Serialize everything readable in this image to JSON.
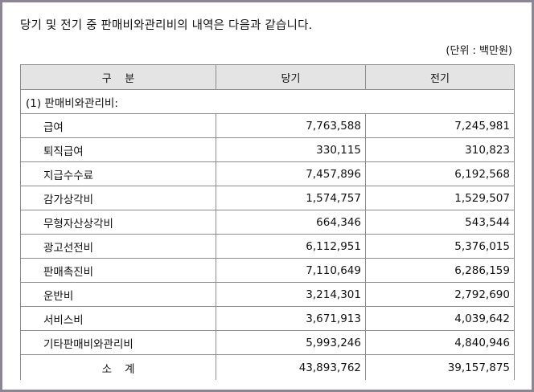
{
  "intro": "당기 및 전기 중 판매비와관리비의 내역은 다음과 같습니다.",
  "unit": "(단위 : 백만원)",
  "headers": {
    "category": "구    분",
    "current": "당기",
    "prior": "전기"
  },
  "section_title": "(1) 판매비와관리비:",
  "rows": [
    {
      "item": "급여",
      "current": "7,763,588",
      "prior": "7,245,981"
    },
    {
      "item": "퇴직급여",
      "current": "330,115",
      "prior": "310,823"
    },
    {
      "item": "지급수수료",
      "current": "7,457,896",
      "prior": "6,192,568"
    },
    {
      "item": "감가상각비",
      "current": "1,574,757",
      "prior": "1,529,507"
    },
    {
      "item": "무형자산상각비",
      "current": "664,346",
      "prior": "543,544"
    },
    {
      "item": "광고선전비",
      "current": "6,112,951",
      "prior": "5,376,015"
    },
    {
      "item": "판매촉진비",
      "current": "7,110,649",
      "prior": "6,286,159"
    },
    {
      "item": "운반비",
      "current": "3,214,301",
      "prior": "2,792,690"
    },
    {
      "item": "서비스비",
      "current": "3,671,913",
      "prior": "4,039,642"
    },
    {
      "item": "기타판매비와관리비",
      "current": "5,993,246",
      "prior": "4,840,946"
    }
  ],
  "subtotal": {
    "item": "소계",
    "current": "43,893,762",
    "prior": "39,157,875"
  }
}
